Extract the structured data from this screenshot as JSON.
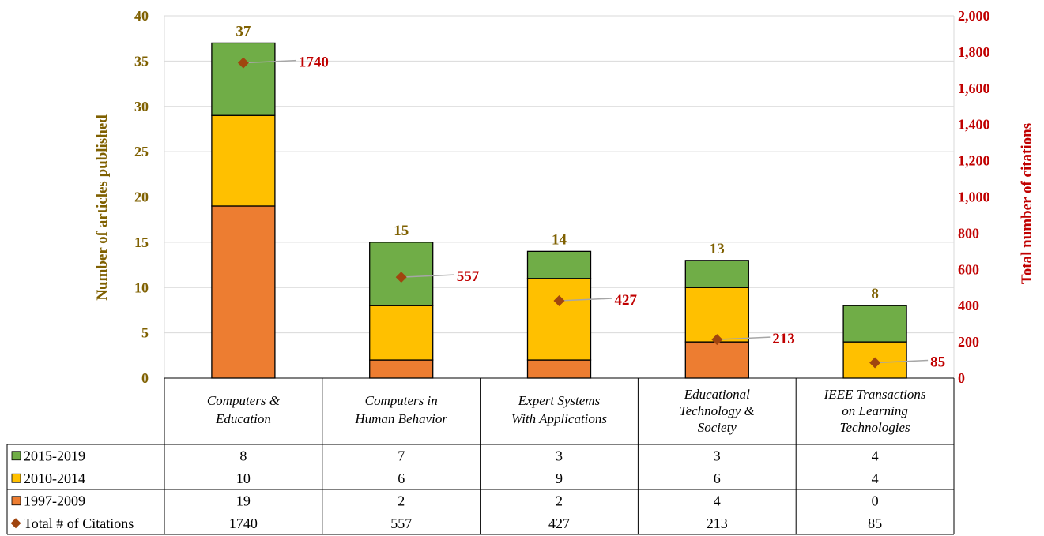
{
  "chart_data": {
    "type": "bar",
    "categories": [
      [
        "Computers &",
        "Education"
      ],
      [
        "Computers in",
        "Human Behavior"
      ],
      [
        "Expert Systems",
        "With Applications"
      ],
      [
        "Educational",
        "Technology &",
        "Society"
      ],
      [
        "IEEE Transactions",
        "on Learning",
        "Technologies"
      ]
    ],
    "series": [
      {
        "name": "2015-2019",
        "values": [
          8,
          7,
          3,
          3,
          4
        ],
        "color": "#70ad47"
      },
      {
        "name": "2010-2014",
        "values": [
          10,
          6,
          9,
          6,
          4
        ],
        "color": "#ffc000"
      },
      {
        "name": "1997-2009",
        "values": [
          19,
          2,
          2,
          4,
          0
        ],
        "color": "#ed7d31"
      }
    ],
    "totals": [
      "37",
      "15",
      "14",
      "13",
      "8"
    ],
    "citations": {
      "name": "Total # of Citations",
      "values": [
        1740,
        557,
        427,
        213,
        85
      ],
      "color": "#a0450f",
      "label_color": "#c00000"
    },
    "citation_labels": [
      "1740",
      "557",
      "427",
      "213",
      "85"
    ],
    "table_values": {
      "s2015": [
        "8",
        "7",
        "3",
        "3",
        "4"
      ],
      "s2010": [
        "10",
        "6",
        "9",
        "6",
        "4"
      ],
      "s1997": [
        "19",
        "2",
        "2",
        "4",
        "0"
      ],
      "citations": [
        "1740",
        "557",
        "427",
        "213",
        "85"
      ]
    },
    "ylabel": "Number of articles published",
    "y2label": "Total number of citations",
    "ylim": [
      0,
      40
    ],
    "y2lim": [
      0,
      2000
    ],
    "yticks": [
      "0",
      "5",
      "10",
      "15",
      "20",
      "25",
      "30",
      "35",
      "40"
    ],
    "y2ticks": [
      "0",
      "200",
      "400",
      "600",
      "800",
      "1,000",
      "1,200",
      "1,400",
      "1,600",
      "1,800",
      "2,000"
    ],
    "grid": true,
    "legend": "data-table",
    "colors": {
      "left_axis": "#7f6000",
      "right_axis": "#c00000",
      "grid": "#d9d9d9"
    }
  }
}
